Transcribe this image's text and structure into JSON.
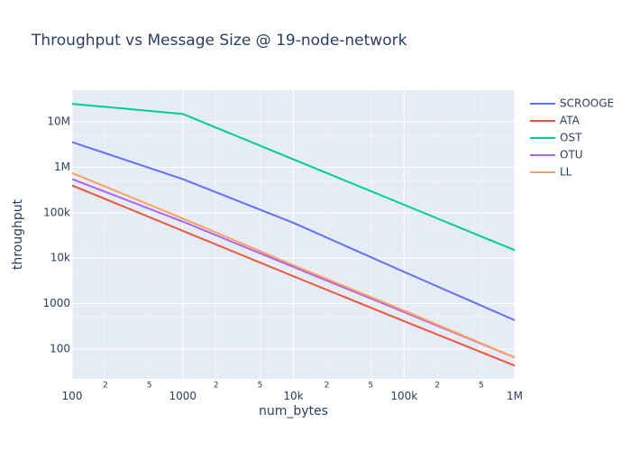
{
  "chart_data": {
    "type": "line",
    "title": "Throughput vs Message Size @ 19-node-network",
    "xlabel": "num_bytes",
    "ylabel": "throughput",
    "xscale": "log",
    "yscale": "log",
    "xlim": [
      100,
      1000000
    ],
    "ylim": [
      22,
      50000000
    ],
    "grid": true,
    "legend_position": "top-right",
    "x_ticks": [
      {
        "value": 100,
        "label": "100"
      },
      {
        "value": 1000,
        "label": "1000"
      },
      {
        "value": 10000,
        "label": "10k"
      },
      {
        "value": 100000,
        "label": "100k"
      },
      {
        "value": 1000000,
        "label": "1M"
      }
    ],
    "x_minor_ticks": [
      {
        "value": 200,
        "label": "2"
      },
      {
        "value": 500,
        "label": "5"
      },
      {
        "value": 2000,
        "label": "2"
      },
      {
        "value": 5000,
        "label": "5"
      },
      {
        "value": 20000,
        "label": "2"
      },
      {
        "value": 50000,
        "label": "5"
      },
      {
        "value": 200000,
        "label": "2"
      },
      {
        "value": 500000,
        "label": "5"
      }
    ],
    "y_ticks": [
      {
        "value": 100,
        "label": "100"
      },
      {
        "value": 1000,
        "label": "1000"
      },
      {
        "value": 10000,
        "label": "10k"
      },
      {
        "value": 100000,
        "label": "100k"
      },
      {
        "value": 1000000,
        "label": "1M"
      },
      {
        "value": 10000000,
        "label": "10M"
      }
    ],
    "y_minor_grid": [
      50,
      500,
      5000,
      50000,
      500000,
      5000000
    ],
    "series": [
      {
        "name": "SCROOGE",
        "color": "#636efa",
        "x": [
          100,
          1000,
          10000,
          100000,
          1000000
        ],
        "y": [
          3600000,
          550000,
          60000,
          5000,
          430
        ]
      },
      {
        "name": "ATA",
        "color": "#ef553b",
        "x": [
          100,
          1000,
          10000,
          100000,
          1000000
        ],
        "y": [
          400000,
          40000,
          4000,
          410,
          43
        ]
      },
      {
        "name": "OST",
        "color": "#00cc96",
        "x": [
          100,
          1000,
          10000,
          100000,
          1000000
        ],
        "y": [
          25000000,
          15000000,
          1500000,
          150000,
          15000
        ]
      },
      {
        "name": "OTU",
        "color": "#ab63fa",
        "x": [
          100,
          1000,
          10000,
          100000,
          1000000
        ],
        "y": [
          550000,
          64000,
          6400,
          650,
          65
        ]
      },
      {
        "name": "LL",
        "color": "#ffa15a",
        "x": [
          100,
          1000,
          10000,
          100000,
          1000000
        ],
        "y": [
          750000,
          75000,
          7000,
          700,
          65
        ]
      }
    ]
  }
}
